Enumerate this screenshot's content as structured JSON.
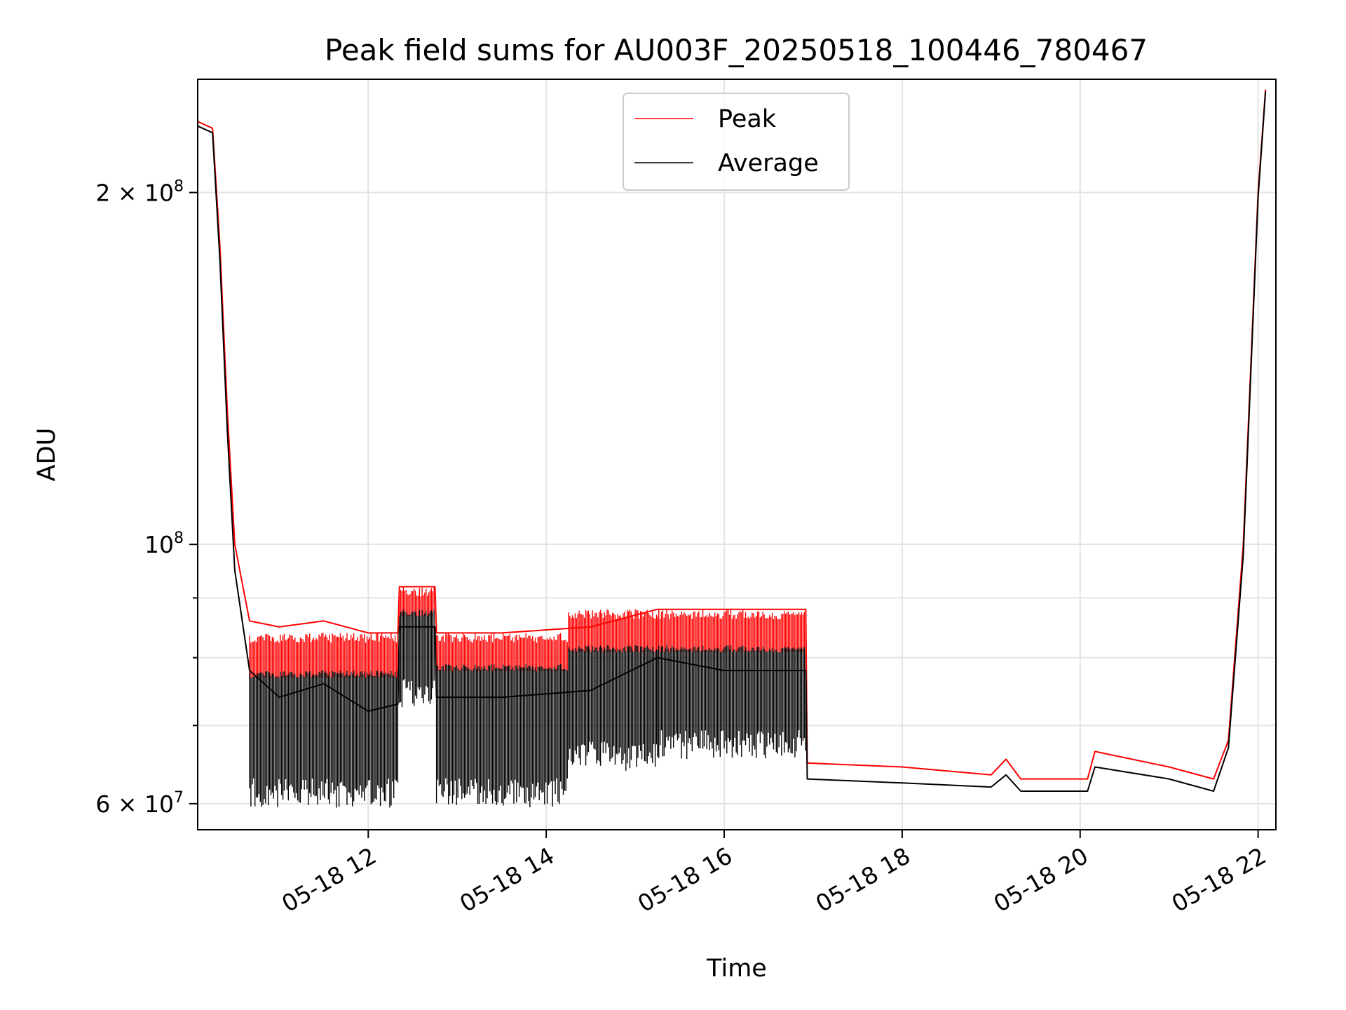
{
  "chart_data": {
    "type": "line",
    "title": "Peak field sums for AU003F_20250518_100446_780467",
    "xlabel": "Time",
    "ylabel": "ADU",
    "y_scale": "log",
    "xlim": [
      "05-18 10:05",
      "05-18 22:12"
    ],
    "ylim": [
      57000000,
      250000000
    ],
    "grid": true,
    "legend_position": "top-center",
    "x_ticks": [
      "05-18 12",
      "05-18 14",
      "05-18 16",
      "05-18 18",
      "05-18 20",
      "05-18 22"
    ],
    "y_ticks": [
      {
        "value": 60000000,
        "base": "6 × 10",
        "exp": "7"
      },
      {
        "value": 100000000,
        "base": "10",
        "exp": "8"
      },
      {
        "value": 200000000,
        "base": "2 × 10",
        "exp": "8"
      }
    ],
    "series": [
      {
        "name": "Peak",
        "color": "#ff0000",
        "points": [
          [
            "05-18 10:05",
            230000000
          ],
          [
            "05-18 10:15",
            227000000
          ],
          [
            "05-18 10:20",
            180000000
          ],
          [
            "05-18 10:25",
            130000000
          ],
          [
            "05-18 10:30",
            100000000
          ],
          [
            "05-18 10:40",
            86000000
          ],
          [
            "05-18 11:00",
            85000000
          ],
          [
            "05-18 11:30",
            86000000
          ],
          [
            "05-18 12:00",
            84000000
          ],
          [
            "05-18 12:20",
            84000000
          ],
          [
            "05-18 12:21",
            92000000
          ],
          [
            "05-18 12:45",
            92000000
          ],
          [
            "05-18 12:46",
            84000000
          ],
          [
            "05-18 13:30",
            84000000
          ],
          [
            "05-18 14:30",
            85000000
          ],
          [
            "05-18 15:15",
            88000000
          ],
          [
            "05-18 16:00",
            88000000
          ],
          [
            "05-18 16:55",
            88000000
          ],
          [
            "05-18 16:56",
            65000000
          ],
          [
            "05-18 18:00",
            64500000
          ],
          [
            "05-18 19:00",
            63500000
          ],
          [
            "05-18 19:10",
            65500000
          ],
          [
            "05-18 19:20",
            63000000
          ],
          [
            "05-18 20:05",
            63000000
          ],
          [
            "05-18 20:10",
            66500000
          ],
          [
            "05-18 21:00",
            64500000
          ],
          [
            "05-18 21:30",
            63000000
          ],
          [
            "05-18 21:40",
            68000000
          ],
          [
            "05-18 21:50",
            100000000
          ],
          [
            "05-18 22:00",
            200000000
          ],
          [
            "05-18 22:05",
            245000000
          ]
        ]
      },
      {
        "name": "Average",
        "color": "#000000",
        "points": [
          [
            "05-18 10:05",
            228000000
          ],
          [
            "05-18 10:15",
            225000000
          ],
          [
            "05-18 10:20",
            175000000
          ],
          [
            "05-18 10:25",
            125000000
          ],
          [
            "05-18 10:30",
            95000000
          ],
          [
            "05-18 10:40",
            78000000
          ],
          [
            "05-18 11:00",
            74000000
          ],
          [
            "05-18 11:30",
            76000000
          ],
          [
            "05-18 12:00",
            72000000
          ],
          [
            "05-18 12:20",
            73000000
          ],
          [
            "05-18 12:21",
            85000000
          ],
          [
            "05-18 12:45",
            85000000
          ],
          [
            "05-18 12:46",
            74000000
          ],
          [
            "05-18 13:30",
            74000000
          ],
          [
            "05-18 14:30",
            75000000
          ],
          [
            "05-18 15:15",
            80000000
          ],
          [
            "05-18 16:00",
            78000000
          ],
          [
            "05-18 16:55",
            78000000
          ],
          [
            "05-18 16:56",
            63000000
          ],
          [
            "05-18 18:00",
            62500000
          ],
          [
            "05-18 19:00",
            62000000
          ],
          [
            "05-18 19:10",
            63500000
          ],
          [
            "05-18 19:20",
            61500000
          ],
          [
            "05-18 20:05",
            61500000
          ],
          [
            "05-18 20:10",
            64500000
          ],
          [
            "05-18 21:00",
            63000000
          ],
          [
            "05-18 21:30",
            61500000
          ],
          [
            "05-18 21:40",
            67000000
          ],
          [
            "05-18 21:50",
            98000000
          ],
          [
            "05-18 22:00",
            198000000
          ],
          [
            "05-18 22:05",
            244000000
          ]
        ]
      }
    ],
    "oscillation_bands": [
      {
        "from": "05-18 10:40",
        "to": "05-18 12:20",
        "peak_top": 84000000,
        "avg_top": 78000000,
        "avg_min": 59500000
      },
      {
        "from": "05-18 12:21",
        "to": "05-18 12:45",
        "peak_top": 92000000,
        "avg_top": 88000000,
        "avg_min": 72500000
      },
      {
        "from": "05-18 12:46",
        "to": "05-18 14:15",
        "peak_top": 84000000,
        "avg_top": 79000000,
        "avg_min": 59500000
      },
      {
        "from": "05-18 14:15",
        "to": "05-18 15:15",
        "peak_top": 88000000,
        "avg_top": 82000000,
        "avg_min": 64000000
      },
      {
        "from": "05-18 15:15",
        "to": "05-18 16:55",
        "peak_top": 88000000,
        "avg_top": 82000000,
        "avg_min": 65500000
      }
    ]
  }
}
